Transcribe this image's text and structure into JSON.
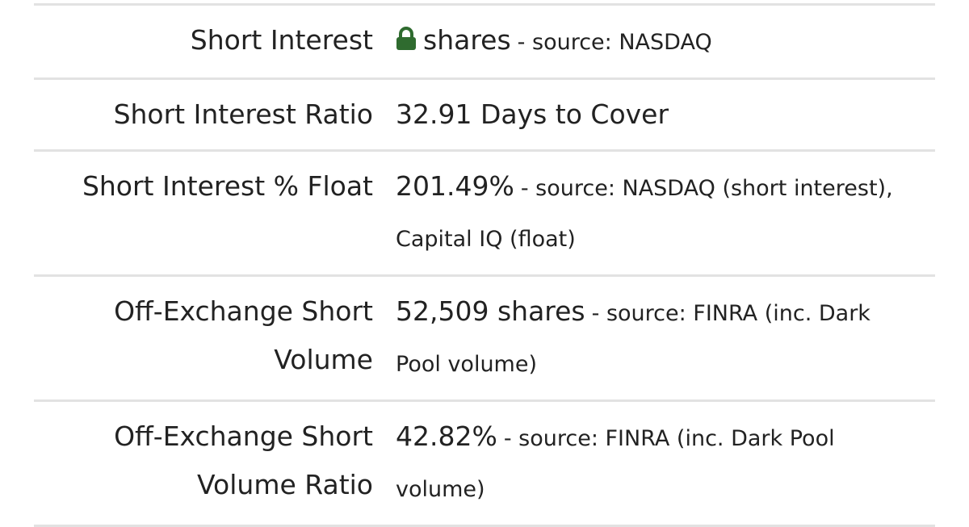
{
  "table": {
    "rows": [
      {
        "label": "Short Interest",
        "value": "shares",
        "source": "- source: NASDAQ"
      },
      {
        "label": "Short Interest Ratio",
        "value": "32.91 Days to Cover"
      },
      {
        "label": "Short Interest % Float",
        "value": "201.49%",
        "source": "- source: NASDAQ (short interest), Capital IQ (float)"
      },
      {
        "label": "Off-Exchange Short Volume",
        "value": "52,509 shares",
        "source": "- source: FINRA (inc. Dark Pool volume)"
      },
      {
        "label": "Off-Exchange Short Volume Ratio",
        "value": "42.82%",
        "source": "- source: FINRA (inc. Dark Pool volume)"
      }
    ]
  }
}
